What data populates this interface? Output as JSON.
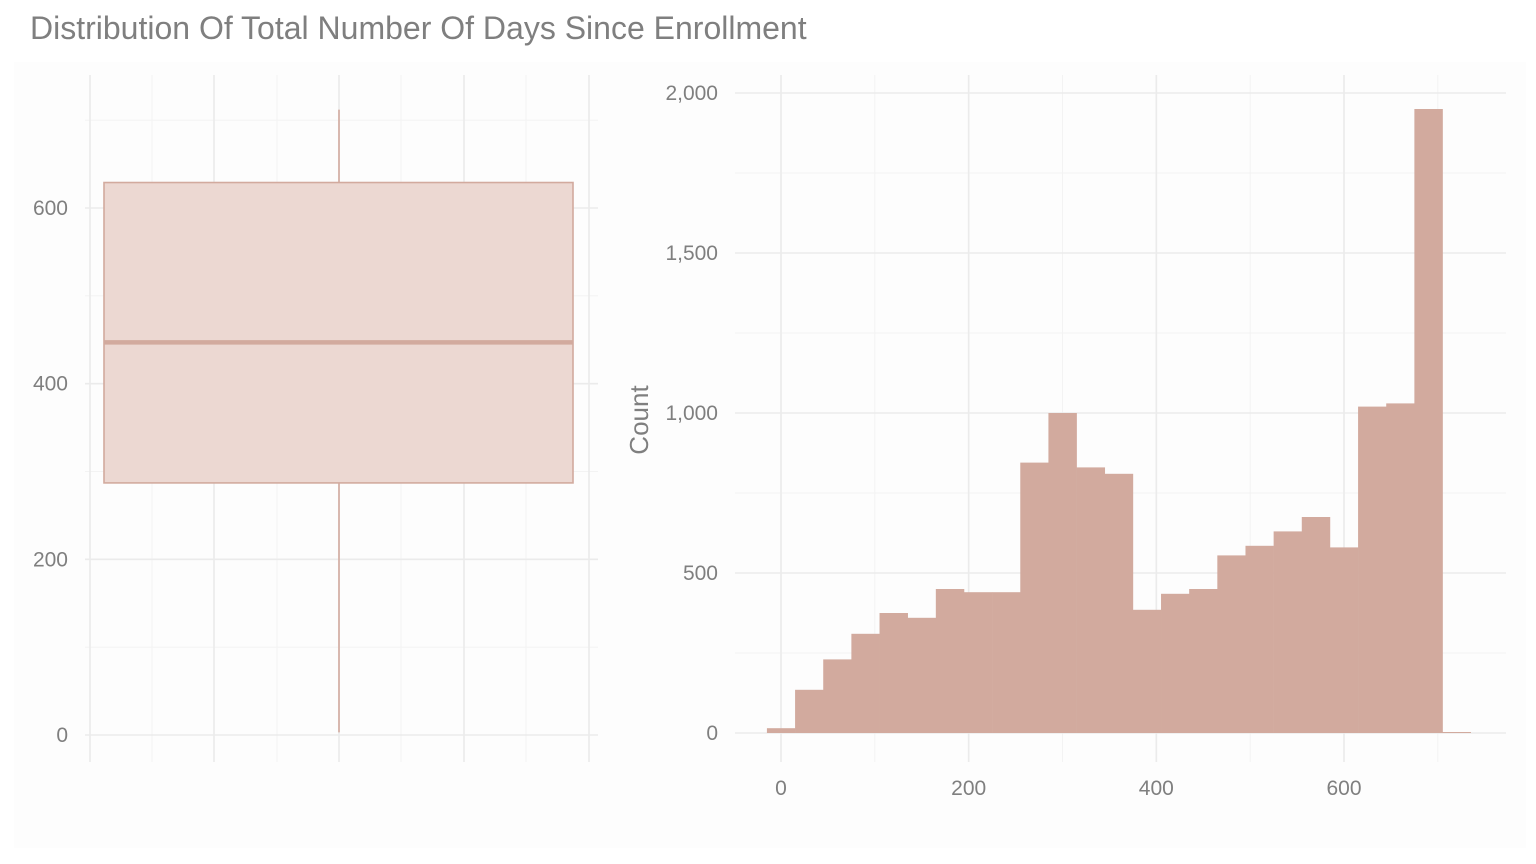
{
  "title": "Distribution Of Total Number Of Days Since Enrollment",
  "colors": {
    "fill": "#d2aa9e",
    "box_fill": "#ecd8d2",
    "box_stroke": "#d2aa9e",
    "grid": "#ebebeb",
    "text": "#7f7f7f"
  },
  "chart_data": [
    {
      "type": "box",
      "title": "",
      "ylabel": "",
      "ylim": [
        0,
        710
      ],
      "yticks": [
        0,
        200,
        400,
        600
      ],
      "ytick_labels": [
        "0",
        "200",
        "400",
        "600"
      ],
      "stats": {
        "min": 3,
        "q1": 287,
        "median": 447,
        "q3": 629,
        "max": 712
      }
    },
    {
      "type": "bar",
      "title": "",
      "xlabel": "",
      "ylabel": "Count",
      "xlim": [
        -50,
        770
      ],
      "ylim": [
        0,
        2000
      ],
      "xticks": [
        0,
        200,
        400,
        600
      ],
      "xtick_labels": [
        "0",
        "200",
        "400",
        "600"
      ],
      "yticks": [
        0,
        500,
        1000,
        1500,
        2000
      ],
      "ytick_labels": [
        "0",
        "500",
        "1,000",
        "1,500",
        "2,000"
      ],
      "bin_width": 30,
      "bin_starts": [
        -15,
        15,
        45,
        75,
        105,
        135,
        165,
        195,
        225,
        255,
        285,
        315,
        345,
        375,
        405,
        435,
        465,
        495,
        525,
        555,
        585,
        615,
        645,
        675,
        705
      ],
      "values": [
        15,
        135,
        230,
        310,
        375,
        360,
        450,
        440,
        440,
        845,
        1000,
        830,
        810,
        385,
        435,
        450,
        555,
        585,
        630,
        675,
        580,
        1020,
        1030,
        1950,
        3
      ]
    }
  ]
}
